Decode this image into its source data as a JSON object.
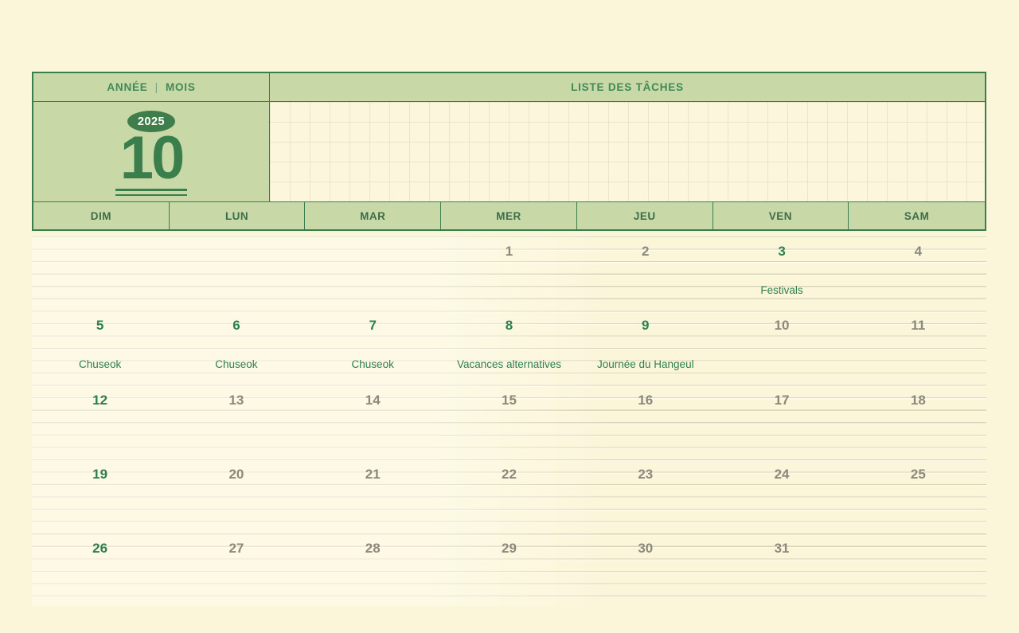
{
  "header": {
    "year_label": "ANNÉE",
    "separator": "|",
    "month_label": "MOIS",
    "todo_title": "LISTE DES TÂCHES",
    "year_value": "2025",
    "month_value": "10"
  },
  "weekdays": [
    "DIM",
    "LUN",
    "MAR",
    "MER",
    "JEU",
    "VEN",
    "SAM"
  ],
  "weeks": [
    [
      {
        "date": "",
        "event": "",
        "highlight": false
      },
      {
        "date": "",
        "event": "",
        "highlight": false
      },
      {
        "date": "",
        "event": "",
        "highlight": false
      },
      {
        "date": "1",
        "event": "",
        "highlight": false
      },
      {
        "date": "2",
        "event": "",
        "highlight": false
      },
      {
        "date": "3",
        "event": "Festivals",
        "highlight": true
      },
      {
        "date": "4",
        "event": "",
        "highlight": false
      }
    ],
    [
      {
        "date": "5",
        "event": "Chuseok",
        "highlight": true
      },
      {
        "date": "6",
        "event": "Chuseok",
        "highlight": true
      },
      {
        "date": "7",
        "event": "Chuseok",
        "highlight": true
      },
      {
        "date": "8",
        "event": "Vacances alternatives",
        "highlight": true
      },
      {
        "date": "9",
        "event": "Journée du Hangeul",
        "highlight": true
      },
      {
        "date": "10",
        "event": "",
        "highlight": false
      },
      {
        "date": "11",
        "event": "",
        "highlight": false
      }
    ],
    [
      {
        "date": "12",
        "event": "",
        "highlight": true
      },
      {
        "date": "13",
        "event": "",
        "highlight": false
      },
      {
        "date": "14",
        "event": "",
        "highlight": false
      },
      {
        "date": "15",
        "event": "",
        "highlight": false
      },
      {
        "date": "16",
        "event": "",
        "highlight": false
      },
      {
        "date": "17",
        "event": "",
        "highlight": false
      },
      {
        "date": "18",
        "event": "",
        "highlight": false
      }
    ],
    [
      {
        "date": "19",
        "event": "",
        "highlight": true
      },
      {
        "date": "20",
        "event": "",
        "highlight": false
      },
      {
        "date": "21",
        "event": "",
        "highlight": false
      },
      {
        "date": "22",
        "event": "",
        "highlight": false
      },
      {
        "date": "23",
        "event": "",
        "highlight": false
      },
      {
        "date": "24",
        "event": "",
        "highlight": false
      },
      {
        "date": "25",
        "event": "",
        "highlight": false
      }
    ],
    [
      {
        "date": "26",
        "event": "",
        "highlight": true
      },
      {
        "date": "27",
        "event": "",
        "highlight": false
      },
      {
        "date": "28",
        "event": "",
        "highlight": false
      },
      {
        "date": "29",
        "event": "",
        "highlight": false
      },
      {
        "date": "30",
        "event": "",
        "highlight": false
      },
      {
        "date": "31",
        "event": "",
        "highlight": false
      },
      {
        "date": "",
        "event": "",
        "highlight": false
      }
    ]
  ],
  "colors": {
    "page_background": "#fbf6da",
    "panel_green": "#c9d8a7",
    "border_green": "#3a7f4b",
    "holiday_green": "#2f7e4e",
    "date_gray": "#8b897b",
    "rule_line": "#d9d3b8"
  }
}
